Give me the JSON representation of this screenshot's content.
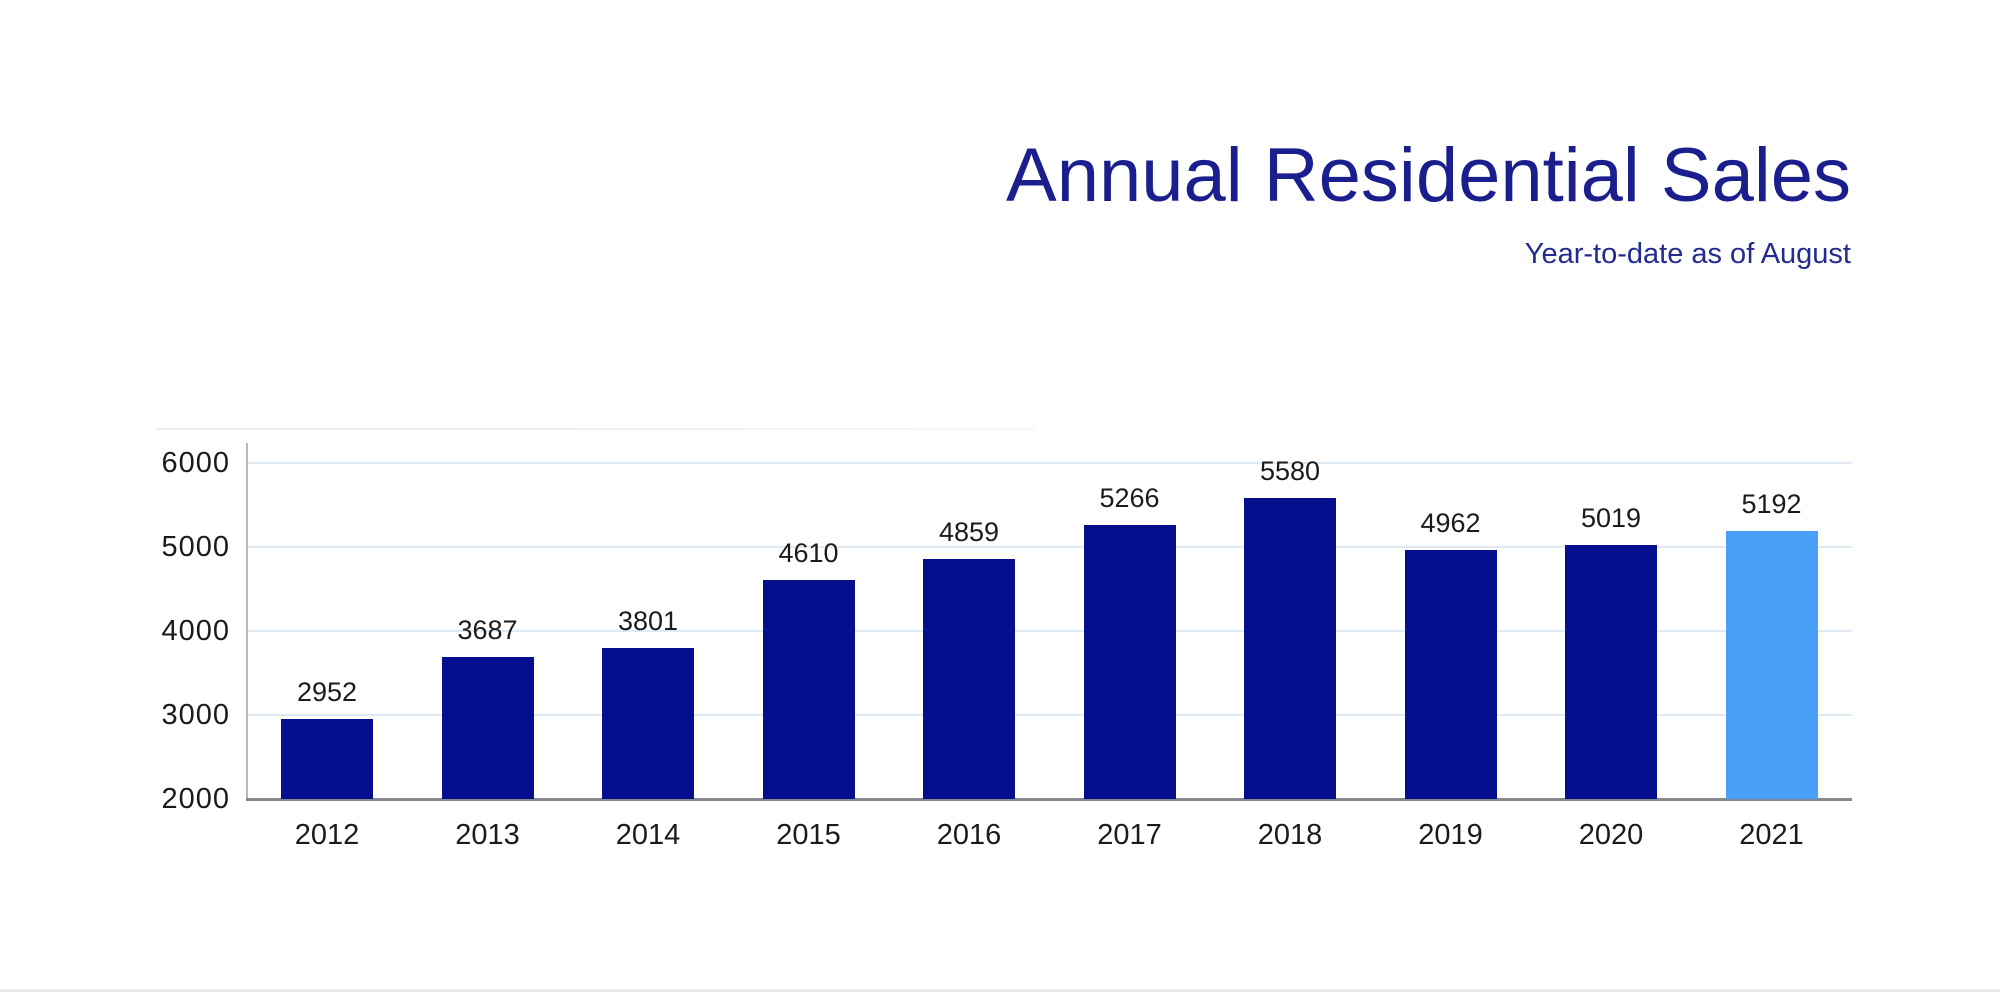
{
  "header": {
    "title": "Annual Residential Sales",
    "subtitle": "Year-to-date as of August"
  },
  "chart_data": {
    "type": "bar",
    "title": "Annual Residential Sales",
    "subtitle": "Year-to-date as of August",
    "categories": [
      "2012",
      "2013",
      "2014",
      "2015",
      "2016",
      "2017",
      "2018",
      "2019",
      "2020",
      "2021"
    ],
    "values": [
      2952,
      3687,
      3801,
      4610,
      4859,
      5266,
      5580,
      4962,
      5019,
      5192
    ],
    "value_labels_shown": true,
    "xlabel": "",
    "ylabel": "",
    "ylim": [
      2000,
      6000
    ],
    "yticks": [
      2000,
      3000,
      4000,
      5000,
      6000
    ],
    "grid": "horizontal",
    "legend": "none",
    "bar_color": "#050e8c",
    "highlight_bar_color": "#4aa0f8",
    "highlight_category": "2021",
    "gridline_color": "#dfeaf4",
    "axis_line_color": "#84898f",
    "label_color": "#1b1b1b",
    "title_color": "#1b1f8e"
  }
}
